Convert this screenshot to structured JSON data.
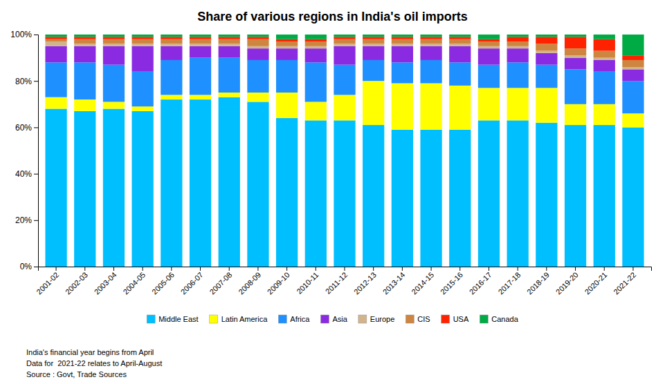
{
  "chart_data": {
    "type": "bar",
    "stacked": true,
    "grid": false,
    "legend": "bottom",
    "title": "Share of various regions in India's oil imports",
    "categories": [
      "2001-02",
      "2002-03",
      "2003-04",
      "2004-05",
      "2005-06",
      "2006-07",
      "2007-08",
      "2008-09",
      "2009-10",
      "2010-11",
      "2011-12",
      "2012-13",
      "2013-14",
      "2014-15",
      "2015-16",
      "2016-17",
      "2017-18",
      "2018-19",
      "2019-20",
      "2020-21",
      "2021-22"
    ],
    "series": [
      {
        "name": "Middle East",
        "color": "#00bfff",
        "values": [
          68,
          67,
          68,
          67,
          72,
          72,
          73,
          71,
          64,
          63,
          63,
          61,
          59,
          59,
          59,
          63,
          63,
          62,
          61,
          61,
          60
        ]
      },
      {
        "name": "Latin America",
        "color": "#ffff00",
        "values": [
          5,
          5,
          3,
          2,
          2,
          2,
          2,
          4,
          11,
          8,
          11,
          19,
          20,
          20,
          19,
          14,
          14,
          15,
          9,
          9,
          6
        ]
      },
      {
        "name": "Africa",
        "color": "#1e90ff",
        "values": [
          15,
          16,
          16,
          15,
          15,
          16,
          15,
          14,
          14,
          17,
          13,
          9,
          9,
          10,
          10,
          10,
          11,
          10,
          15,
          14,
          14
        ]
      },
      {
        "name": "Asia",
        "color": "#8a2be2",
        "values": [
          7,
          7,
          8,
          11,
          6,
          5,
          5,
          5,
          5,
          6,
          8,
          6,
          7,
          6,
          7,
          7,
          6,
          5,
          5,
          5,
          5
        ]
      },
      {
        "name": "Europe",
        "color": "#d2b48c",
        "values": [
          2,
          1,
          1,
          1,
          1,
          1,
          1,
          1,
          1,
          1,
          1,
          1,
          1,
          1,
          1,
          1,
          1,
          1,
          1,
          1,
          1
        ]
      },
      {
        "name": "CIS",
        "color": "#cd853f",
        "values": [
          1,
          2,
          2,
          2,
          2,
          2,
          2,
          3,
          2,
          2,
          2,
          2,
          2,
          2,
          2,
          2,
          2,
          3,
          3,
          3,
          3
        ]
      },
      {
        "name": "USA",
        "color": "#ff2200",
        "values": [
          1,
          1,
          1,
          1,
          1,
          1,
          1,
          1,
          1,
          1,
          1,
          1,
          1,
          1,
          1,
          1,
          2,
          3,
          5,
          5,
          2
        ]
      },
      {
        "name": "Canada",
        "color": "#00aa44",
        "values": [
          1,
          1,
          1,
          1,
          1,
          1,
          1,
          1,
          2,
          2,
          1,
          1,
          1,
          1,
          1,
          2,
          1,
          1,
          1,
          2,
          9
        ]
      }
    ],
    "ylim": [
      0,
      100
    ],
    "yticks": [
      {
        "value": 0,
        "label": "0%"
      },
      {
        "value": 20,
        "label": "20%"
      },
      {
        "value": 40,
        "label": "40%"
      },
      {
        "value": 60,
        "label": "60%"
      },
      {
        "value": 80,
        "label": "80%"
      },
      {
        "value": 100,
        "label": "100%"
      }
    ],
    "annotations": [
      "India's financial year begins from April",
      "Data for  2021-22 relates to April-August",
      "Source : Govt, Trade Sources"
    ]
  }
}
